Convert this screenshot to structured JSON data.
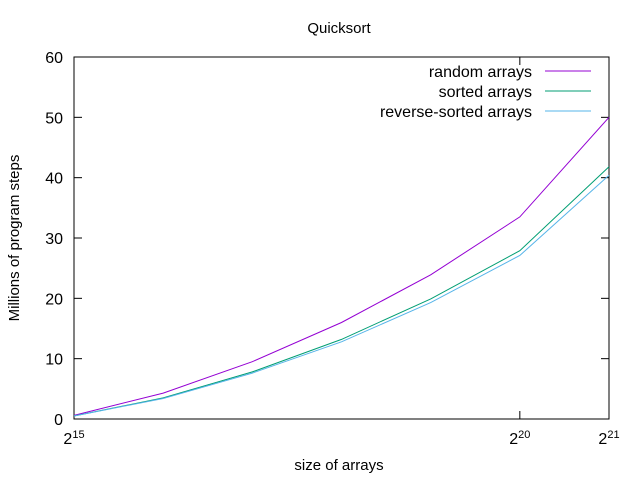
{
  "chart_data": {
    "type": "line",
    "title": "Quicksort",
    "xlabel": "size of arrays",
    "ylabel": "Millions of program steps",
    "x_scale": "log2",
    "xlim": [
      32768,
      2097152
    ],
    "ylim": [
      0,
      60
    ],
    "x_ticks": [
      {
        "value": 32768,
        "base": "2",
        "exp": "15"
      },
      {
        "value": 1048576,
        "base": "2",
        "exp": "20"
      },
      {
        "value": 2097152,
        "base": "2",
        "exp": "21"
      }
    ],
    "y_ticks": [
      0,
      10,
      20,
      30,
      40,
      50,
      60
    ],
    "grid": false,
    "legend_position": "top-right",
    "x": [
      32768,
      65536,
      131072,
      262144,
      524288,
      1048576,
      2097152
    ],
    "series": [
      {
        "name": "random arrays",
        "color": "#9400d3",
        "values": [
          0.6,
          4.3,
          9.5,
          16.0,
          23.9,
          33.5,
          50.0
        ]
      },
      {
        "name": "sorted arrays",
        "color": "#009e73",
        "values": [
          0.5,
          3.5,
          7.8,
          13.2,
          19.9,
          27.9,
          41.8
        ]
      },
      {
        "name": "reverse-sorted arrays",
        "color": "#56b4e9",
        "values": [
          0.5,
          3.4,
          7.6,
          12.8,
          19.3,
          27.1,
          40.4
        ]
      }
    ]
  }
}
